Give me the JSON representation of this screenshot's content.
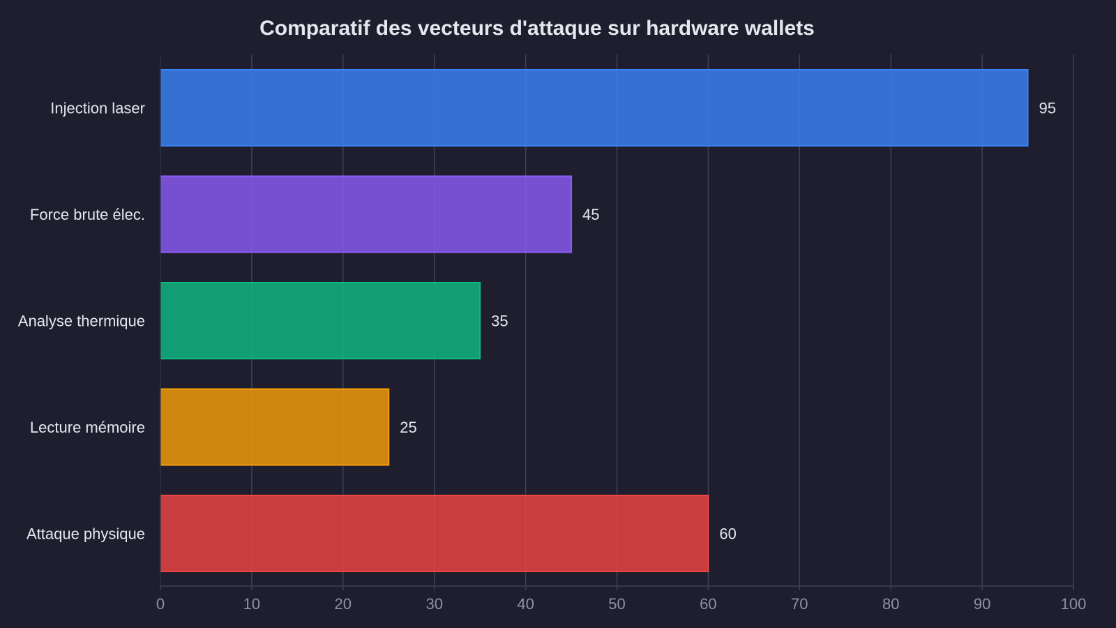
{
  "chart_data": {
    "type": "bar",
    "orientation": "horizontal",
    "title": "Comparatif des vecteurs d'attaque sur hardware wallets",
    "categories": [
      "Injection laser",
      "Force brute élec.",
      "Analyse thermique",
      "Lecture mémoire",
      "Attaque physique"
    ],
    "values": [
      95,
      45,
      35,
      25,
      60
    ],
    "colors": [
      "#3b82f6",
      "#8b5cf6",
      "#10b981",
      "#f59e0b",
      "#ef4444"
    ],
    "xlim": [
      0,
      100
    ],
    "xticks": [
      0,
      10,
      20,
      30,
      40,
      50,
      60,
      70,
      80,
      90,
      100
    ],
    "grid": "vertical",
    "value_labels": true,
    "background": "#1e1e2e",
    "grid_color": "#3a4356"
  }
}
